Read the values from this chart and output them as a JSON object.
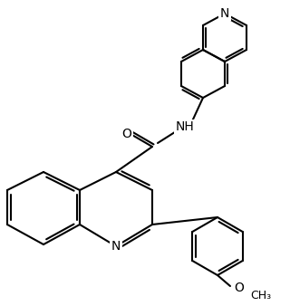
{
  "bg_color": "#ffffff",
  "line_color": "#000000",
  "line_width": 1.5,
  "font_size": 10,
  "figsize": [
    3.2,
    3.38
  ],
  "dpi": 100,
  "atoms": {
    "N_quinoline_top": "N",
    "NH_linker": "NH",
    "O_carbonyl": "O",
    "N_main_quinoline": "N",
    "O_methoxy": "O",
    "OMe": "OC"
  }
}
